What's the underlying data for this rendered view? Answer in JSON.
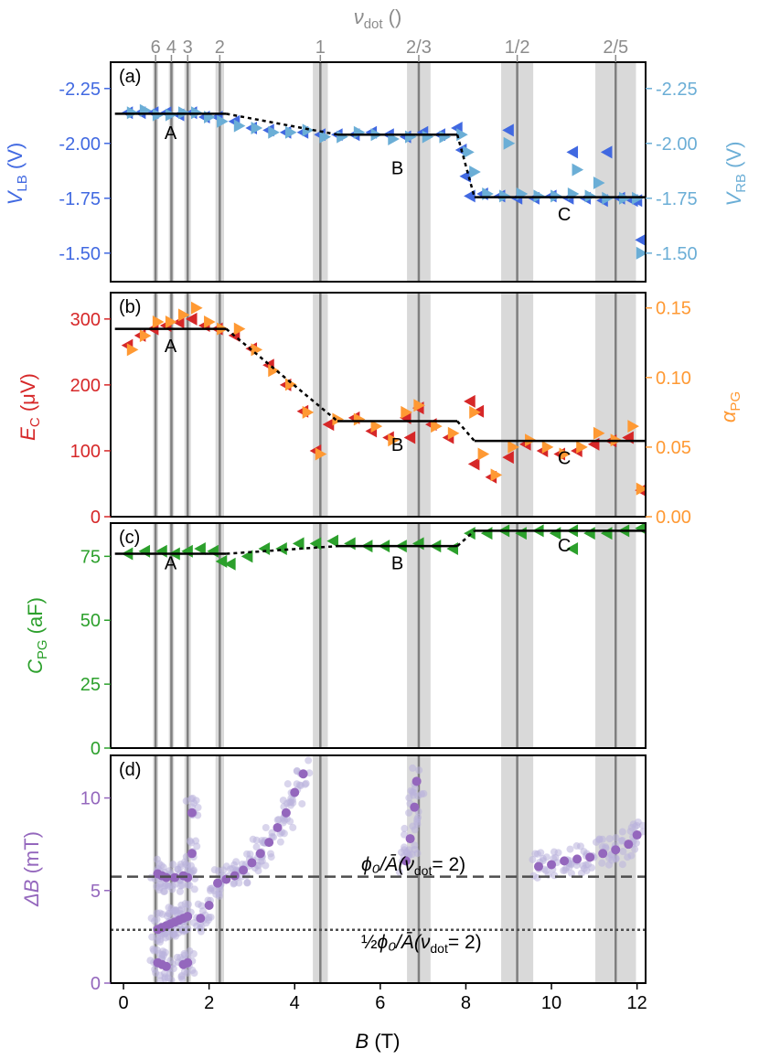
{
  "colors": {
    "v_lb": "#4169e1",
    "v_rb": "#6baed6",
    "e_c": "#d62728",
    "alpha_pg": "#ff9933",
    "c_pg": "#2ca02c",
    "delta_b": "#9467bd",
    "delta_b_light": "#b9b3dd",
    "nu_line": "#7f7f7f",
    "nu_band": "#d9d9d9",
    "fit": "#000000",
    "ref_line": "#4d4d4d"
  },
  "x_axis": {
    "label_main": "B",
    "label_unit": " (T)",
    "ticks": [
      "0",
      "2",
      "4",
      "6",
      "8",
      "10",
      "12"
    ],
    "range": [
      -0.3,
      12.2
    ]
  },
  "top_axis": {
    "label_main": "ν",
    "label_sub": "dot",
    "label_unit": " ()",
    "ticks": [
      {
        "label": "6",
        "B": 0.75
      },
      {
        "label": "4",
        "B": 1.12
      },
      {
        "label": "3",
        "B": 1.5
      },
      {
        "label": "2",
        "B": 2.25
      },
      {
        "label": "1",
        "B": 4.6
      },
      {
        "label": "2/3",
        "B": 6.9
      },
      {
        "label": "1/2",
        "B": 9.2
      },
      {
        "label": "2/5",
        "B": 11.5
      }
    ]
  },
  "bands": [
    {
      "B": 0.75,
      "w": 0.12
    },
    {
      "B": 1.12,
      "w": 0.12
    },
    {
      "B": 1.5,
      "w": 0.15
    },
    {
      "B": 2.25,
      "w": 0.2
    },
    {
      "B": 4.6,
      "w": 0.35
    },
    {
      "B": 6.9,
      "w": 0.55
    },
    {
      "B": 9.2,
      "w": 0.75
    },
    {
      "B": 11.5,
      "w": 0.95
    }
  ],
  "panels": {
    "a": {
      "tag": "(a)",
      "left_label_main": "V",
      "left_label_sub": "LB",
      "left_label_unit": " (V)",
      "right_label_main": "V",
      "right_label_sub": "RB",
      "right_label_unit": " (V)",
      "yticks": [
        "-2.25",
        "-2.00",
        "-1.75",
        "-1.50"
      ],
      "region_labels": [
        "A",
        "B",
        "C"
      ]
    },
    "b": {
      "tag": "(b)",
      "left_label_main": "E",
      "left_label_sub": "C",
      "left_label_unit": " (μV)",
      "right_label_main": "α",
      "right_label_sub": "PG",
      "yticks_left": [
        "0",
        "100",
        "200",
        "300"
      ],
      "yticks_right": [
        "0.00",
        "0.05",
        "0.10",
        "0.15"
      ],
      "region_labels": [
        "A",
        "B",
        "C"
      ]
    },
    "c": {
      "tag": "(c)",
      "left_label_main": "C",
      "left_label_sub": "PG",
      "left_label_unit": " (aF)",
      "yticks": [
        "0",
        "25",
        "50",
        "75"
      ],
      "region_labels": [
        "A",
        "B",
        "C"
      ]
    },
    "d": {
      "tag": "(d)",
      "left_label_main": "ΔB",
      "left_label_unit": " (mT)",
      "yticks": [
        "0",
        "5",
        "10"
      ],
      "ref_full_label": "ϕ₀/Ā(ν",
      "ref_full_sub": "dot",
      "ref_full_tail": "= 2)",
      "ref_half_prefix": "½",
      "ref_half_label": "ϕ₀/Ā(ν",
      "ref_half_sub": "dot",
      "ref_half_tail": "= 2)"
    }
  },
  "chart_data": [
    {
      "type": "scatter",
      "panel": "a",
      "ylim": [
        -2.37,
        -1.37
      ],
      "y_inverted": true,
      "series": [
        {
          "name": "V_LB",
          "marker": "left-triangle",
          "x": [
            0.1,
            0.4,
            0.7,
            1.0,
            1.3,
            1.6,
            1.9,
            2.2,
            2.6,
            3.0,
            3.4,
            3.8,
            4.2,
            4.6,
            5.0,
            5.4,
            5.8,
            6.2,
            6.6,
            7.0,
            7.4,
            7.8,
            7.9,
            8.0,
            8.1,
            8.4,
            8.8,
            9.2,
            9.6,
            10.0,
            10.4,
            10.8,
            11.2,
            11.6,
            11.9,
            12.0,
            12.1,
            9.0,
            10.5,
            11.3
          ],
          "y": [
            -2.14,
            -2.14,
            -2.14,
            -2.14,
            -2.13,
            -2.14,
            -2.12,
            -2.12,
            -2.1,
            -2.07,
            -2.06,
            -2.05,
            -2.05,
            -2.04,
            -2.04,
            -2.04,
            -2.05,
            -2.04,
            -2.03,
            -2.05,
            -2.04,
            -2.07,
            -1.97,
            -1.85,
            -1.76,
            -1.77,
            -1.76,
            -1.75,
            -1.75,
            -1.76,
            -1.75,
            -1.75,
            -1.74,
            -1.75,
            -1.74,
            -1.74,
            -1.56,
            -2.06,
            -1.96,
            -1.96
          ]
        },
        {
          "name": "V_RB",
          "marker": "right-triangle",
          "x": [
            0.2,
            0.5,
            0.8,
            1.1,
            1.4,
            1.7,
            2.0,
            2.3,
            2.7,
            3.1,
            3.5,
            3.9,
            4.3,
            4.7,
            5.1,
            5.5,
            5.9,
            6.3,
            6.7,
            7.1,
            7.5,
            7.9,
            8.05,
            8.2,
            8.5,
            8.9,
            9.3,
            9.7,
            10.1,
            10.5,
            10.9,
            11.3,
            11.7,
            12.0,
            12.1,
            9.0,
            10.6,
            11.1
          ],
          "y": [
            -2.14,
            -2.15,
            -2.13,
            -2.13,
            -2.14,
            -2.14,
            -2.12,
            -2.1,
            -2.08,
            -2.07,
            -2.05,
            -2.05,
            -2.06,
            -2.03,
            -2.03,
            -2.05,
            -2.04,
            -2.02,
            -2.03,
            -2.03,
            -2.03,
            -2.04,
            -1.96,
            -1.87,
            -1.77,
            -1.76,
            -1.77,
            -1.76,
            -1.76,
            -1.77,
            -1.76,
            -1.75,
            -1.75,
            -1.75,
            -1.5,
            -2.0,
            -1.88,
            -1.82
          ]
        }
      ],
      "fit": {
        "x": [
          -0.2,
          2.4,
          5.0,
          7.8,
          8.2,
          12.2
        ],
        "y": [
          -2.135,
          -2.135,
          -2.04,
          -2.04,
          -1.755,
          -1.755
        ],
        "dashed_segments": [
          [
            2.4,
            5.0
          ],
          [
            7.8,
            8.2
          ]
        ]
      },
      "region_positions": [
        {
          "B": 1.1,
          "y": -2.02
        },
        {
          "B": 6.4,
          "y": -1.86
        },
        {
          "B": 10.3,
          "y": -1.65
        }
      ]
    },
    {
      "type": "scatter",
      "panel": "b",
      "ylim_left": [
        0,
        340
      ],
      "ylim_right": [
        0,
        0.161
      ],
      "series": [
        {
          "name": "E_C",
          "axis": "left",
          "marker": "left-triangle",
          "x": [
            0.1,
            0.4,
            0.7,
            1.0,
            1.3,
            1.6,
            1.9,
            2.2,
            2.6,
            3.0,
            3.4,
            3.8,
            4.2,
            4.5,
            4.8,
            5.4,
            5.8,
            6.2,
            6.6,
            6.9,
            7.2,
            7.6,
            8.1,
            8.3,
            8.6,
            9.0,
            9.4,
            9.8,
            10.2,
            10.6,
            11.0,
            11.4,
            11.8,
            12.1,
            6.7,
            8.2,
            12.1
          ],
          "y": [
            260,
            275,
            285,
            290,
            295,
            300,
            290,
            285,
            275,
            255,
            230,
            200,
            160,
            100,
            140,
            150,
            130,
            120,
            150,
            165,
            140,
            120,
            175,
            160,
            60,
            90,
            110,
            100,
            95,
            100,
            110,
            115,
            120,
            40,
            120,
            80,
            40
          ]
        },
        {
          "name": "α_PG",
          "axis": "right",
          "marker": "right-triangle",
          "x": [
            0.2,
            0.5,
            0.8,
            1.1,
            1.4,
            1.7,
            2.0,
            2.3,
            2.7,
            3.1,
            3.5,
            3.9,
            4.3,
            4.6,
            5.0,
            5.5,
            5.9,
            6.3,
            6.6,
            6.9,
            7.3,
            7.7,
            8.2,
            8.4,
            8.7,
            9.1,
            9.5,
            9.9,
            10.3,
            10.7,
            11.1,
            11.5,
            11.9,
            12.1
          ],
          "y": [
            0.12,
            0.13,
            0.14,
            0.14,
            0.145,
            0.15,
            0.14,
            0.135,
            0.135,
            0.12,
            0.105,
            0.095,
            0.075,
            0.045,
            0.07,
            0.07,
            0.065,
            0.055,
            0.075,
            0.08,
            0.065,
            0.06,
            0.075,
            0.045,
            0.03,
            0.05,
            0.055,
            0.05,
            0.045,
            0.05,
            0.06,
            0.055,
            0.065,
            0.02
          ]
        }
      ],
      "fit": {
        "x": [
          -0.2,
          2.4,
          5.0,
          7.8,
          8.2,
          12.2
        ],
        "y": [
          285,
          285,
          145,
          145,
          115,
          115
        ],
        "dashed_segments": [
          [
            2.4,
            5.0
          ],
          [
            7.8,
            8.2
          ]
        ]
      },
      "region_positions": [
        {
          "B": 1.1,
          "y": 250
        },
        {
          "B": 6.4,
          "y": 100
        },
        {
          "B": 10.3,
          "y": 80
        }
      ]
    },
    {
      "type": "scatter",
      "panel": "c",
      "ylim": [
        0,
        88
      ],
      "series": [
        {
          "name": "C_PG",
          "marker": "left-triangle",
          "x": [
            0.1,
            0.5,
            0.9,
            1.2,
            1.5,
            1.8,
            2.1,
            2.3,
            2.5,
            2.9,
            3.3,
            3.7,
            4.1,
            4.5,
            4.9,
            5.3,
            5.7,
            6.1,
            6.5,
            6.9,
            7.3,
            7.7,
            8.1,
            8.5,
            8.9,
            9.3,
            9.7,
            10.1,
            10.5,
            10.9,
            11.3,
            11.7,
            12.1,
            10.5
          ],
          "y": [
            76,
            77,
            77,
            76,
            77,
            78,
            77,
            73,
            72,
            75,
            78,
            78,
            80,
            80,
            81,
            80,
            79,
            79,
            79,
            80,
            79,
            78,
            84,
            84,
            85,
            84,
            85,
            84,
            85,
            84,
            84,
            85,
            86,
            78
          ]
        }
      ],
      "fit": {
        "x": [
          -0.2,
          2.4,
          5.0,
          7.8,
          8.2,
          12.2
        ],
        "y": [
          76,
          76,
          79,
          79,
          85,
          85
        ],
        "dashed_segments": [
          [
            2.4,
            5.0
          ],
          [
            7.8,
            8.2
          ]
        ]
      },
      "region_positions": [
        {
          "B": 1.1,
          "y": 70
        },
        {
          "B": 6.4,
          "y": 70
        },
        {
          "B": 10.3,
          "y": 77
        }
      ]
    },
    {
      "type": "scatter",
      "panel": "d",
      "ylim": [
        0,
        12.3
      ],
      "series": [
        {
          "name": "ΔB (average)",
          "marker": "dot",
          "x": [
            0.8,
            0.9,
            1.0,
            1.1,
            1.2,
            1.3,
            1.4,
            1.5,
            1.6,
            0.8,
            0.9,
            1.0,
            1.2,
            1.4,
            1.6,
            1.8,
            2.0,
            2.2,
            2.4,
            2.6,
            2.8,
            3.0,
            3.2,
            3.4,
            3.6,
            3.8,
            4.0,
            4.2,
            6.6,
            6.7,
            6.8,
            6.85,
            9.7,
            10.0,
            10.3,
            10.6,
            10.9,
            11.2,
            11.5,
            11.8,
            12.0,
            0.8,
            0.9,
            1.0,
            1.4,
            1.5,
            1.5
          ],
          "y": [
            2.9,
            3.0,
            3.1,
            3.2,
            3.3,
            3.4,
            3.5,
            3.6,
            9.2,
            5.9,
            5.8,
            5.7,
            5.7,
            5.8,
            7.0,
            3.5,
            4.2,
            5.4,
            5.6,
            5.8,
            6.1,
            6.5,
            7.0,
            7.6,
            8.4,
            9.2,
            10.3,
            11.3,
            6.6,
            7.8,
            9.5,
            10.9,
            6.3,
            6.4,
            6.6,
            6.7,
            6.8,
            7.0,
            7.2,
            7.5,
            8.0,
            1.1,
            1.0,
            0.9,
            1.0,
            1.1,
            5.7
          ]
        }
      ],
      "ref_lines": [
        {
          "label": "ϕ₀/Ā(ν_dot = 2)",
          "y": 5.75,
          "style": "dashed"
        },
        {
          "label": "½ϕ₀/Ā(ν_dot = 2)",
          "y": 2.88,
          "style": "dotted"
        }
      ]
    }
  ]
}
